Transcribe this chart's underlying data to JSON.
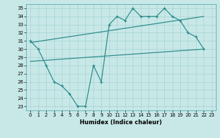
{
  "xlabel": "Humidex (Indice chaleur)",
  "bg_color": "#c8e8e8",
  "line_color": "#2e8b8b",
  "xlim": [
    -0.5,
    23.5
  ],
  "ylim": [
    22.5,
    35.5
  ],
  "yticks": [
    23,
    24,
    25,
    26,
    27,
    28,
    29,
    30,
    31,
    32,
    33,
    34,
    35
  ],
  "xticks": [
    0,
    1,
    2,
    3,
    4,
    5,
    6,
    7,
    8,
    9,
    10,
    11,
    12,
    13,
    14,
    15,
    16,
    17,
    18,
    19,
    20,
    21,
    22,
    23
  ],
  "zigzag_x": [
    0,
    1,
    2,
    3,
    4,
    5,
    6,
    7,
    8,
    9,
    10,
    11,
    12,
    13,
    14,
    15,
    16,
    17,
    18,
    19,
    20,
    21,
    22
  ],
  "zigzag_y": [
    31,
    30,
    28,
    26,
    25.5,
    24.5,
    23,
    23,
    28,
    26,
    33,
    34,
    33.5,
    35,
    34,
    34,
    34,
    35,
    34,
    33.5,
    32,
    31.5,
    30
  ],
  "upper_line_x": [
    0,
    22
  ],
  "upper_line_y": [
    30.8,
    34.0
  ],
  "lower_line_x": [
    0,
    22
  ],
  "lower_line_y": [
    28.5,
    30.0
  ]
}
